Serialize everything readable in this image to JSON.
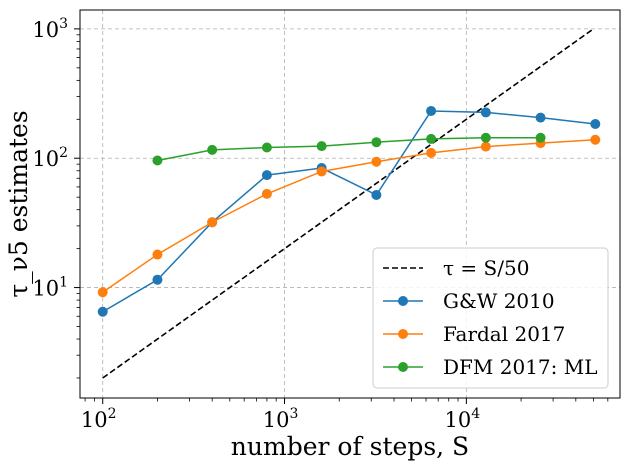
{
  "chart_data": {
    "type": "line",
    "xscale": "log",
    "yscale": "log",
    "xlabel": "number of steps, S",
    "ylabel": "τ_ν5 estimates",
    "xlim": [
      75,
      70000
    ],
    "ylim": [
      1.4,
      1400
    ],
    "grid": true,
    "legend_position": "lower-right",
    "xticks": [
      100,
      1000,
      10000
    ],
    "yticks": [
      10,
      100,
      1000
    ],
    "xtick_labels": [
      {
        "base": "10",
        "exp": "2"
      },
      {
        "base": "10",
        "exp": "3"
      },
      {
        "base": "10",
        "exp": "4"
      }
    ],
    "ytick_labels": [
      {
        "base": "10",
        "exp": "1"
      },
      {
        "base": "10",
        "exp": "2"
      },
      {
        "base": "10",
        "exp": "3"
      }
    ],
    "series": [
      {
        "name": "τ = S/50",
        "color": "#000000",
        "style": "dashed",
        "marker": false,
        "x": [
          100,
          50000
        ],
        "y": [
          2,
          1000
        ]
      },
      {
        "name": "G&W 2010",
        "color": "#1f77b4",
        "style": "solid",
        "marker": true,
        "x": [
          100,
          200,
          400,
          800,
          1600,
          3200,
          6400,
          12800,
          25600,
          51200
        ],
        "y": [
          6.5,
          11.5,
          32,
          74,
          84,
          52,
          232,
          226,
          206,
          184
        ]
      },
      {
        "name": "Fardal 2017",
        "color": "#ff7f0e",
        "style": "solid",
        "marker": true,
        "x": [
          100,
          200,
          400,
          800,
          1600,
          3200,
          6400,
          12800,
          25600,
          51200
        ],
        "y": [
          9.2,
          18,
          32,
          53,
          79,
          94,
          110,
          123,
          131,
          139
        ]
      },
      {
        "name": "DFM 2017: ML",
        "color": "#2ca02c",
        "style": "solid",
        "marker": true,
        "x": [
          200,
          400,
          800,
          1600,
          3200,
          6400,
          12800,
          25600
        ],
        "y": [
          96,
          116,
          121,
          124,
          133,
          141,
          144,
          144
        ]
      }
    ]
  }
}
